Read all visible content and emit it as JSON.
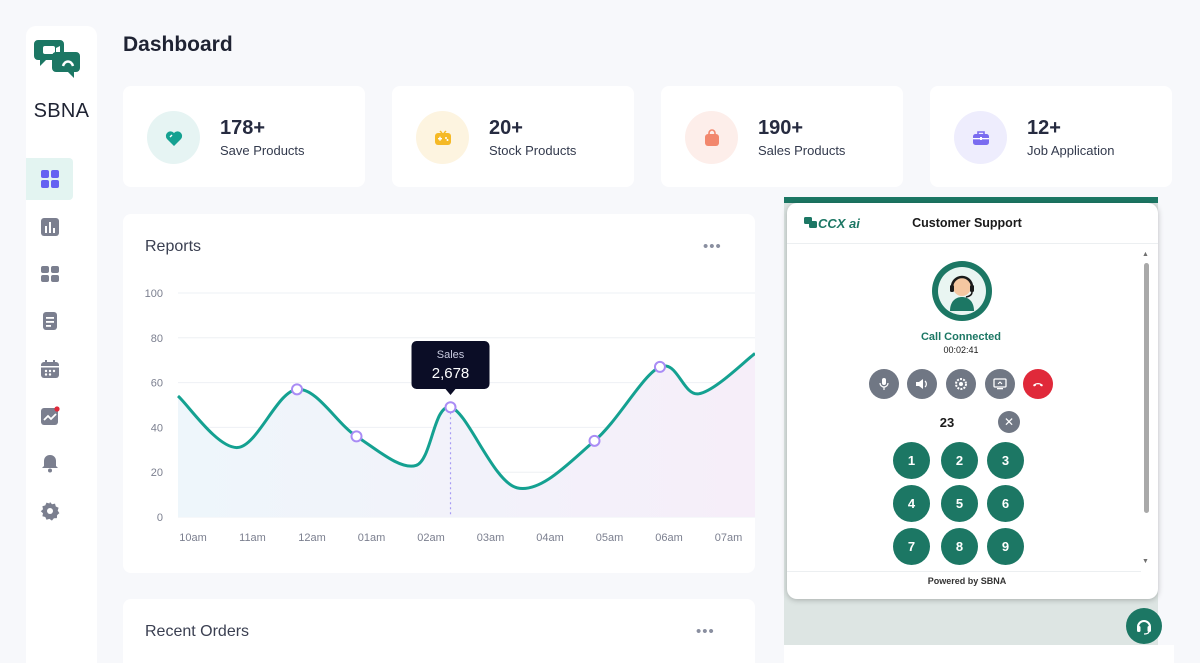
{
  "sidebar": {
    "brand": "SBNA",
    "items": [
      {
        "name": "dashboard",
        "icon": "grid-icon",
        "active": true
      },
      {
        "name": "analytics",
        "icon": "bar-chart-icon"
      },
      {
        "name": "products",
        "icon": "apps-icon"
      },
      {
        "name": "documents",
        "icon": "document-icon"
      },
      {
        "name": "calendar",
        "icon": "calendar-icon"
      },
      {
        "name": "reports",
        "icon": "trend-icon",
        "badge": true
      },
      {
        "name": "notifications",
        "icon": "bell-icon"
      },
      {
        "name": "settings",
        "icon": "gear-icon"
      }
    ]
  },
  "page": {
    "title": "Dashboard"
  },
  "stats": [
    {
      "value": "178+",
      "label": "Save Products",
      "icon": "heart-icon",
      "icon_color": "#14a191",
      "bg": "#e6f4f3"
    },
    {
      "value": "20+",
      "label": "Stock Products",
      "icon": "gamepad-icon",
      "icon_color": "#f5b926",
      "bg": "#fdf4e0"
    },
    {
      "value": "190+",
      "label": "Sales Products",
      "icon": "bag-icon",
      "icon_color": "#f2876d",
      "bg": "#fdeeea"
    },
    {
      "value": "12+",
      "label": "Job Application",
      "icon": "briefcase-icon",
      "icon_color": "#7a6cf0",
      "bg": "#eeedfd"
    }
  ],
  "reports": {
    "title": "Reports",
    "more": "•••",
    "tooltip": {
      "label": "Sales",
      "value": "2,678"
    }
  },
  "chart_data": {
    "type": "line",
    "title": "",
    "xlabel": "",
    "ylabel": "",
    "categories": [
      "10am",
      "11am",
      "12am",
      "01am",
      "02am",
      "03am",
      "04am",
      "05am",
      "06am",
      "07am"
    ],
    "ylim": [
      0,
      100
    ],
    "yticks": [
      0,
      20,
      40,
      60,
      80,
      100
    ],
    "series": [
      {
        "color": "#14a191",
        "points": [
          [
            0,
            54
          ],
          [
            1,
            31
          ],
          [
            2,
            57
          ],
          [
            3,
            36
          ],
          [
            4,
            23
          ],
          [
            4.58,
            49
          ],
          [
            5.7,
            13
          ],
          [
            7,
            34
          ],
          [
            8.1,
            67
          ],
          [
            8.75,
            55
          ],
          [
            9.4,
            73
          ]
        ],
        "markers": [
          [
            2,
            57
          ],
          [
            3,
            36
          ],
          [
            4.58,
            49
          ],
          [
            7,
            34
          ],
          [
            8.1,
            67
          ]
        ]
      }
    ],
    "grid": true,
    "highlight_x": 4.58
  },
  "orders": {
    "title": "Recent Orders",
    "more": "•••"
  },
  "support": {
    "logo_text": "CCX ai",
    "title": "Customer Support",
    "status": "Call Connected",
    "timer": "00:02:41",
    "controls": [
      {
        "name": "mute",
        "icon": "mic-icon"
      },
      {
        "name": "volume",
        "icon": "speaker-icon"
      },
      {
        "name": "settings",
        "icon": "gear-icon"
      },
      {
        "name": "share-screen",
        "icon": "screen-icon"
      },
      {
        "name": "end-call",
        "icon": "phone-hangup-icon"
      }
    ],
    "dial_value": "23",
    "clear": "✕",
    "keys": [
      "1",
      "2",
      "3",
      "4",
      "5",
      "6",
      "7",
      "8",
      "9"
    ],
    "powered_by": "Powered by SBNA"
  }
}
